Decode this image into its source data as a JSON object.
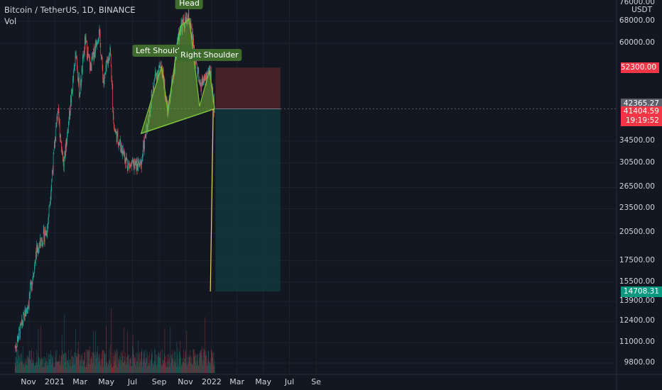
{
  "header": {
    "symbol": "Bitcoin / TetherUS, 1D, BINANCE",
    "indicator": "Vol"
  },
  "chart_data": {
    "type": "candlestick",
    "title": "Bitcoin / TetherUS, 1D, BINANCE",
    "y_unit": "USDT",
    "y_ticks": [
      "68000.00",
      "60000.00",
      "34500.00",
      "30500.00",
      "26500.00",
      "23500.00",
      "20500.00",
      "17500.00",
      "15500.00",
      "13900.00",
      "12400.00",
      "11000.00",
      "9800.00"
    ],
    "y_tick_partial": "76000.00",
    "x_ticks": [
      "Nov",
      "2021",
      "Mar",
      "May",
      "Jul",
      "Sep",
      "Nov",
      "2022",
      "Mar",
      "May",
      "Jul",
      "Se"
    ],
    "price_path": [
      {
        "date": "2020-10-01",
        "price": 10700
      },
      {
        "date": "2020-11-01",
        "price": 13800
      },
      {
        "date": "2020-11-20",
        "price": 18500
      },
      {
        "date": "2020-12-15",
        "price": 21000
      },
      {
        "date": "2021-01-08",
        "price": 41000
      },
      {
        "date": "2021-01-22",
        "price": 30000
      },
      {
        "date": "2021-02-20",
        "price": 57000
      },
      {
        "date": "2021-02-28",
        "price": 45000
      },
      {
        "date": "2021-03-13",
        "price": 61000
      },
      {
        "date": "2021-03-25",
        "price": 52000
      },
      {
        "date": "2021-04-14",
        "price": 64800
      },
      {
        "date": "2021-04-25",
        "price": 48000
      },
      {
        "date": "2021-05-10",
        "price": 58000
      },
      {
        "date": "2021-05-19",
        "price": 37000
      },
      {
        "date": "2021-06-22",
        "price": 30000
      },
      {
        "date": "2021-07-20",
        "price": 30000
      },
      {
        "date": "2021-08-23",
        "price": 50000
      },
      {
        "date": "2021-09-07",
        "price": 52800
      },
      {
        "date": "2021-09-21",
        "price": 40800
      },
      {
        "date": "2021-10-20",
        "price": 66000
      },
      {
        "date": "2021-11-10",
        "price": 69000
      },
      {
        "date": "2021-12-04",
        "price": 47000
      },
      {
        "date": "2021-12-28",
        "price": 51500
      },
      {
        "date": "2022-01-08",
        "price": 41400
      }
    ],
    "annotations": [
      {
        "label": "Left Shoulder",
        "date": "2021-09-07",
        "price": 52800
      },
      {
        "label": "Head",
        "date": "2021-11-10",
        "price": 69000
      },
      {
        "label": "Right Shoulder",
        "date": "2021-12-27",
        "price": 51500
      }
    ],
    "neckline": [
      {
        "date": "2021-07-21",
        "price": 36000
      },
      {
        "date": "2022-01-08",
        "price": 41400
      }
    ],
    "position": {
      "stop": 52300,
      "entry": 41404.59,
      "target": 14708.31
    },
    "projection_line": {
      "from": "2022-01-08",
      "to": "2022-01-08",
      "from_price": 41404.59,
      "to_price": 14708.31
    },
    "price_labels": {
      "stop": "52300.00",
      "last": "42365.27",
      "current": "41404.59",
      "countdown": "19:19:52",
      "target": "14708.31"
    },
    "colors": {
      "up": "#26a69a",
      "down": "#ef5350",
      "pattern": "#7cc13a",
      "stop_zone": "#4a2429",
      "target_zone": "#12363a",
      "projection": "#e8d36b",
      "badge_red": "#f23645",
      "badge_teal": "#089981",
      "badge_gray": "#5d606b",
      "label_bg": "#3f6b2c"
    }
  }
}
